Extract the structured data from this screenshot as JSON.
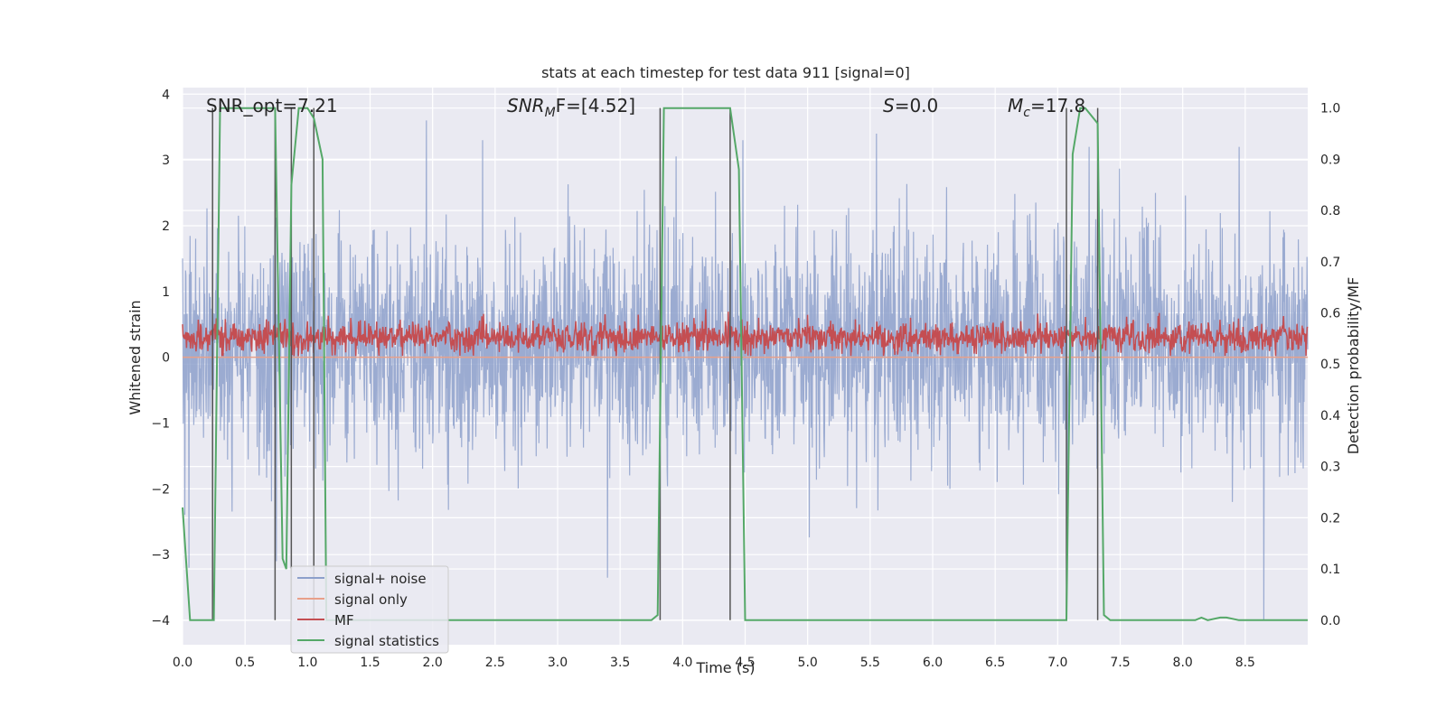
{
  "chart_data": {
    "type": "line",
    "title": "stats at each timestep for test data 911 [signal=0]",
    "xlabel": "Time (s)",
    "ylabel": "Whitened strain",
    "ylabel_right": "Detection probability/MF",
    "xlim": [
      0.0,
      9.0
    ],
    "ylim": [
      -4.37,
      4.1
    ],
    "ylim_right": [
      -0.048,
      1.04
    ],
    "x_ticks": [
      "0.0",
      "0.5",
      "1.0",
      "1.5",
      "2.0",
      "2.5",
      "3.0",
      "3.5",
      "4.0",
      "4.5",
      "5.0",
      "5.5",
      "6.0",
      "6.5",
      "7.0",
      "7.5",
      "8.0",
      "8.5"
    ],
    "y_ticks_left": [
      "4",
      "3",
      "2",
      "1",
      "0",
      "−1",
      "−2",
      "−3",
      "−4"
    ],
    "y_ticks_left_values": [
      4,
      3,
      2,
      1,
      0,
      -1,
      -2,
      -3,
      -4
    ],
    "y_ticks_right": [
      "1.0",
      "0.9",
      "0.8",
      "0.7",
      "0.6",
      "0.5",
      "0.4",
      "0.3",
      "0.2",
      "0.1",
      "0.0"
    ],
    "y_ticks_right_values": [
      1.0,
      0.9,
      0.8,
      0.7,
      0.6,
      0.5,
      0.4,
      0.3,
      0.2,
      0.1,
      0.0
    ],
    "grid": true,
    "legend_position": "lower-left",
    "annotations": {
      "snr_opt": "SNR_opt=7.21",
      "snr_mf_prefix": "SNR",
      "snr_mf_sub": "M",
      "snr_mf_suffix": "F=[4.52]",
      "s_prefix": "S",
      "s_suffix": "=0.0",
      "mc_prefix": "M",
      "mc_sub": "c",
      "mc_suffix": "=17.8"
    },
    "series": [
      {
        "name": "signal+ noise",
        "color": "#8da0cb",
        "description_of_values": "noise band roughly between -2.5 and 2.5 whitened strain",
        "band_typical": [
          -1.6,
          2.0
        ],
        "notable_peaks_x": [
          1.95,
          2.4,
          5.55,
          7.25,
          8.45
        ],
        "notable_peaks_y": [
          3.6,
          3.3,
          3.4,
          3.2,
          3.2
        ],
        "notable_troughs_x": [
          0.05,
          0.75,
          3.4,
          8.65
        ],
        "notable_troughs_y": [
          -3.2,
          -3.1,
          -3.35,
          -4.0
        ]
      },
      {
        "name": "signal only",
        "color": "#e8a08a",
        "values_constant": 0.0
      },
      {
        "name": "MF",
        "color": "#c44e52",
        "band_typical": [
          0.05,
          0.55
        ]
      },
      {
        "name": "signal statistics",
        "color": "#55a868",
        "axis": "right",
        "x": [
          0.0,
          0.06,
          0.25,
          0.3,
          0.74,
          0.8,
          0.83,
          0.87,
          0.93,
          1.0,
          1.05,
          1.12,
          1.15,
          3.75,
          3.8,
          3.85,
          4.38,
          4.45,
          4.5,
          7.07,
          7.12,
          7.18,
          7.22,
          7.32,
          7.37,
          7.42,
          8.1,
          8.15,
          8.2,
          8.3,
          8.35,
          8.45,
          8.5,
          9.0
        ],
        "values": [
          0.22,
          0.0,
          0.0,
          1.0,
          1.0,
          0.12,
          0.1,
          0.85,
          1.0,
          1.0,
          0.98,
          0.9,
          0.0,
          0.0,
          0.01,
          1.0,
          1.0,
          0.88,
          0.0,
          0.0,
          0.91,
          1.0,
          1.0,
          0.97,
          0.01,
          0.0,
          0.0,
          0.005,
          0.0,
          0.005,
          0.005,
          0.0,
          0.0,
          0.0
        ]
      }
    ],
    "vertical_markers_x": [
      0.24,
      0.74,
      0.87,
      1.05,
      3.82,
      4.38,
      7.07,
      7.32
    ]
  },
  "legend": {
    "items": [
      {
        "label": "signal+ noise",
        "color": "#8da0cb"
      },
      {
        "label": "signal only",
        "color": "#e8a08a"
      },
      {
        "label": "MF",
        "color": "#c44e52"
      },
      {
        "label": "signal statistics",
        "color": "#55a868"
      }
    ]
  }
}
